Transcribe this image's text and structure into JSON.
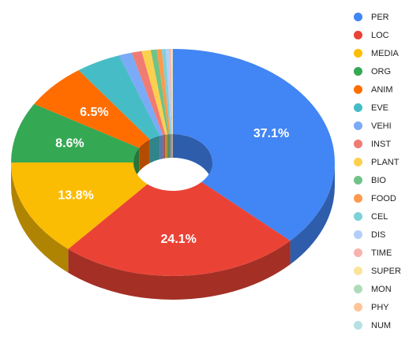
{
  "chart_data": {
    "type": "pie",
    "style": "3d-donut",
    "title": "",
    "legend_position": "right",
    "slices": [
      {
        "label": "PER",
        "value": 37.1,
        "color": "#4285f4",
        "show_label": true
      },
      {
        "label": "LOC",
        "value": 24.1,
        "color": "#ea4335",
        "show_label": true
      },
      {
        "label": "MEDIA",
        "value": 13.8,
        "color": "#fbbc04",
        "show_label": true
      },
      {
        "label": "ORG",
        "value": 8.6,
        "color": "#34a853",
        "show_label": true
      },
      {
        "label": "ANIM",
        "value": 6.5,
        "color": "#ff6d01",
        "show_label": true
      },
      {
        "label": "EVE",
        "value": 4.5,
        "color": "#46bdc6",
        "show_label": false
      },
      {
        "label": "VEHI",
        "value": 1.3,
        "color": "#7baaf7",
        "show_label": false
      },
      {
        "label": "INST",
        "value": 1.0,
        "color": "#f07b72",
        "show_label": false
      },
      {
        "label": "PLANT",
        "value": 0.9,
        "color": "#fcd04f",
        "show_label": false
      },
      {
        "label": "BIO",
        "value": 0.6,
        "color": "#71c287",
        "show_label": false
      },
      {
        "label": "FOOD",
        "value": 0.5,
        "color": "#ff994d",
        "show_label": false
      },
      {
        "label": "CEL",
        "value": 0.4,
        "color": "#7ed1d7",
        "show_label": false
      },
      {
        "label": "DIS",
        "value": 0.3,
        "color": "#b3cefb",
        "show_label": false
      },
      {
        "label": "TIME",
        "value": 0.2,
        "color": "#f7b4ae",
        "show_label": false
      },
      {
        "label": "SUPER",
        "value": 0.1,
        "color": "#fde49b",
        "show_label": false
      },
      {
        "label": "MON",
        "value": 0.05,
        "color": "#aedcba",
        "show_label": false
      },
      {
        "label": "PHY",
        "value": 0.03,
        "color": "#ffc599",
        "show_label": false
      },
      {
        "label": "NUM",
        "value": 0.02,
        "color": "#b5e1e5",
        "show_label": false
      }
    ]
  }
}
